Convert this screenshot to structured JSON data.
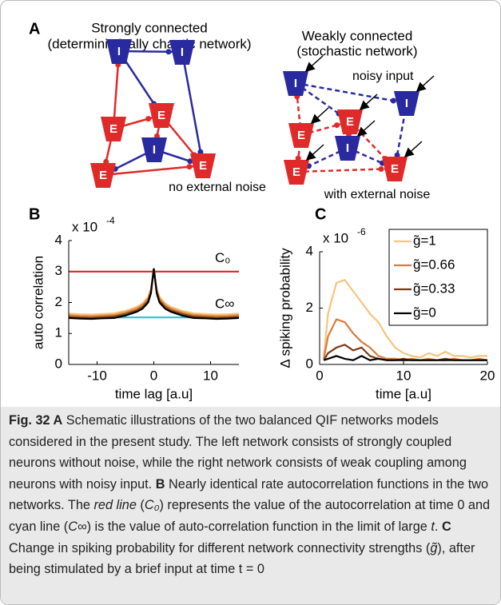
{
  "diagram": {
    "label": "A",
    "left": {
      "title": "Strongly connected",
      "subtitle": "(deterministically chaotic network)",
      "note": "no external noise",
      "nodes": [
        "I",
        "I",
        "E",
        "E",
        "I",
        "E",
        "E"
      ]
    },
    "right": {
      "title": "Weakly connected",
      "subtitle": "(stochastic network)",
      "input_label": "noisy input",
      "note": "with external noise",
      "nodes": [
        "I",
        "I",
        "E",
        "E",
        "I",
        "E",
        "E"
      ]
    }
  },
  "chart_data": [
    {
      "type": "line",
      "panel_label": "B",
      "x_label": "time lag [a.u]",
      "y_label": "auto correlation",
      "y_multiplier": {
        "base": "x 10",
        "exponent": "-4"
      },
      "xlim": [
        -15,
        15
      ],
      "xticks": [
        -10,
        0,
        10
      ],
      "ylim": [
        0,
        4
      ],
      "yticks": [
        0,
        1,
        2,
        3,
        4
      ],
      "annotations": [
        "C₀",
        "C∞"
      ],
      "x": [
        -15,
        -13,
        -11,
        -9,
        -7,
        -5,
        -3,
        -2,
        -1,
        -0.5,
        0,
        0.5,
        1,
        2,
        3,
        5,
        7,
        9,
        11,
        13,
        15
      ],
      "series": [
        {
          "color": "#d62a20",
          "values": [
            3,
            3,
            3,
            3,
            3,
            3,
            3,
            3,
            3,
            3,
            3,
            3,
            3,
            3,
            3,
            3,
            3,
            3,
            3,
            3,
            3
          ]
        },
        {
          "color": "#3cc4d0",
          "values": [
            1.52,
            1.52,
            1.52,
            1.52,
            1.52,
            1.52,
            1.52,
            1.52,
            1.52,
            1.52,
            1.52,
            1.52,
            1.52,
            1.52,
            1.52,
            1.52,
            1.52,
            1.52,
            1.52,
            1.52,
            1.52
          ]
        },
        {
          "color": "#f7c47a",
          "values": [
            1.64,
            1.62,
            1.61,
            1.63,
            1.65,
            1.73,
            1.86,
            1.97,
            2.18,
            2.45,
            3.05,
            2.45,
            2.18,
            1.97,
            1.86,
            1.73,
            1.65,
            1.63,
            1.61,
            1.62,
            1.64
          ]
        },
        {
          "color": "#e08a3c",
          "values": [
            1.59,
            1.57,
            1.56,
            1.58,
            1.6,
            1.68,
            1.81,
            1.92,
            2.12,
            2.4,
            3.07,
            2.4,
            2.12,
            1.92,
            1.81,
            1.68,
            1.6,
            1.58,
            1.56,
            1.57,
            1.59
          ]
        },
        {
          "color": "#8a4a22",
          "values": [
            1.54,
            1.52,
            1.51,
            1.53,
            1.55,
            1.63,
            1.75,
            1.86,
            2.06,
            2.35,
            3.09,
            2.35,
            2.06,
            1.86,
            1.75,
            1.63,
            1.55,
            1.53,
            1.51,
            1.52,
            1.54
          ]
        },
        {
          "color": "#000000",
          "values": [
            1.5,
            1.48,
            1.47,
            1.49,
            1.5,
            1.58,
            1.7,
            1.8,
            2.0,
            2.3,
            3.1,
            2.3,
            2.0,
            1.8,
            1.7,
            1.58,
            1.5,
            1.49,
            1.47,
            1.48,
            1.5
          ]
        }
      ]
    },
    {
      "type": "line",
      "panel_label": "C",
      "x_label": "time [a.u]",
      "y_label": "Δ spiking probability",
      "y_multiplier": {
        "base": "x 10",
        "exponent": "-6"
      },
      "xlim": [
        0,
        20
      ],
      "xticks": [
        0,
        10,
        20
      ],
      "ylim": [
        0,
        4
      ],
      "yticks": [
        0,
        2,
        4
      ],
      "legend": "upper right",
      "x": [
        0.5,
        1,
        2,
        3,
        4,
        5,
        6,
        7,
        8,
        9,
        10,
        11,
        12,
        13,
        14,
        15,
        16,
        17,
        18,
        19,
        20
      ],
      "series": [
        {
          "name": "g̃=1",
          "color": "#f7c47a",
          "values": [
            0.3,
            1.8,
            2.9,
            3.0,
            2.6,
            2.2,
            1.8,
            1.5,
            1.0,
            0.6,
            0.4,
            0.3,
            0.25,
            0.4,
            0.3,
            0.45,
            0.3,
            0.3,
            0.25,
            0.3,
            0.3
          ]
        },
        {
          "name": "g̃=0.66",
          "color": "#d97a3c",
          "values": [
            0.2,
            1.0,
            1.6,
            1.5,
            1.1,
            0.8,
            0.6,
            0.3,
            0.2,
            0.2,
            0.15,
            0.2,
            0.15,
            0.2,
            0.15,
            0.15,
            0.2,
            0.15,
            0.15,
            0.2,
            0.15
          ]
        },
        {
          "name": "g̃=0.33",
          "color": "#7a3b1a",
          "values": [
            0.15,
            0.4,
            0.6,
            0.7,
            0.5,
            0.6,
            0.3,
            0.2,
            0.15,
            0.15,
            0.2,
            0.15,
            0.15,
            0.15,
            0.15,
            0.2,
            0.15,
            0.15,
            0.15,
            0.15,
            0.15
          ]
        },
        {
          "name": "g̃=0",
          "color": "#000000",
          "values": [
            0.15,
            0.2,
            0.3,
            0.2,
            0.15,
            0.3,
            0.15,
            0.2,
            0.15,
            0.15,
            0.15,
            0.15,
            0.15,
            0.15,
            0.15,
            0.15,
            0.15,
            0.15,
            0.15,
            0.15,
            0.15
          ]
        }
      ]
    }
  ],
  "caption": {
    "parts": [
      {
        "text": "Fig. 32",
        "style": "bold"
      },
      {
        "text": " A",
        "style": "bold"
      },
      {
        "text": " Schematic illustrations of the two balanced QIF networks models considered in the present study. The left network consists of strongly coupled neurons without noise, while the right network consists of weak coupling among neurons with noisy input. ",
        "style": "normal"
      },
      {
        "text": "B",
        "style": "bold"
      },
      {
        "text": " Nearly identical rate autocorrelation functions in the two networks. The ",
        "style": "normal"
      },
      {
        "text": "red line",
        "style": "italic"
      },
      {
        "text": " (",
        "style": "normal"
      },
      {
        "text": "C₀",
        "style": "italic"
      },
      {
        "text": ") represents the value of the autocorrelation at time 0 and cyan line (",
        "style": "normal"
      },
      {
        "text": "C∞",
        "style": "italic"
      },
      {
        "text": ") is the value of auto-correlation function in the limit of large ",
        "style": "normal"
      },
      {
        "text": "t",
        "style": "italic"
      },
      {
        "text": ". ",
        "style": "normal"
      },
      {
        "text": "C",
        "style": "bold"
      },
      {
        "text": " Change in spiking probability for different network connectivity strengths (",
        "style": "normal"
      },
      {
        "text": "g̃",
        "style": "italic"
      },
      {
        "text": "), after being stimulated by a brief input at time t = 0",
        "style": "normal"
      }
    ]
  }
}
